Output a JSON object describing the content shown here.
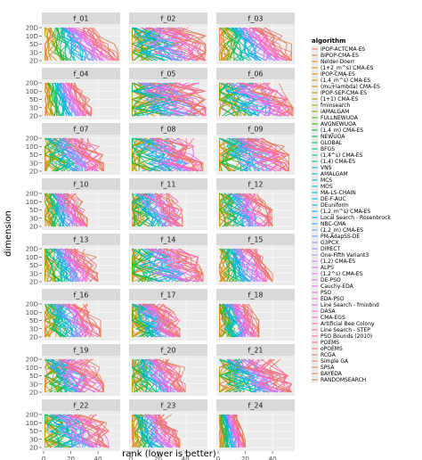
{
  "chart_data": {
    "type": "line",
    "title": "",
    "xlabel": "rank (lower is better)",
    "ylabel": "dimension",
    "x_ticks": [
      0,
      20,
      40
    ],
    "xlim": [
      0,
      55
    ],
    "y_ticks": [
      "2D",
      "3D",
      "5D",
      "10D",
      "20D"
    ],
    "panels": [
      {
        "name": "f_01",
        "max_rank": 55,
        "tangle": 0.2
      },
      {
        "name": "f_02",
        "max_rank": 55,
        "tangle": 0.6
      },
      {
        "name": "f_03",
        "max_rank": 54,
        "tangle": 0.25
      },
      {
        "name": "f_04",
        "max_rank": 35,
        "tangle": 0.15
      },
      {
        "name": "f_05",
        "max_rank": 55,
        "tangle": 0.75
      },
      {
        "name": "f_06",
        "max_rank": 55,
        "tangle": 0.5
      },
      {
        "name": "f_07",
        "max_rank": 44,
        "tangle": 0.45
      },
      {
        "name": "f_08",
        "max_rank": 53,
        "tangle": 0.55
      },
      {
        "name": "f_09",
        "max_rank": 52,
        "tangle": 0.5
      },
      {
        "name": "f_10",
        "max_rank": 32,
        "tangle": 0.35
      },
      {
        "name": "f_11",
        "max_rank": 38,
        "tangle": 0.5
      },
      {
        "name": "f_12",
        "max_rank": 40,
        "tangle": 0.4
      },
      {
        "name": "f_13",
        "max_rank": 40,
        "tangle": 0.35
      },
      {
        "name": "f_14",
        "max_rank": 53,
        "tangle": 0.6
      },
      {
        "name": "f_15",
        "max_rank": 40,
        "tangle": 0.3
      },
      {
        "name": "f_16",
        "max_rank": 42,
        "tangle": 0.35
      },
      {
        "name": "f_17",
        "max_rank": 36,
        "tangle": 0.5
      },
      {
        "name": "f_18",
        "max_rank": 30,
        "tangle": 0.4
      },
      {
        "name": "f_19",
        "max_rank": 44,
        "tangle": 0.55
      },
      {
        "name": "f_20",
        "max_rank": 40,
        "tangle": 0.4
      },
      {
        "name": "f_21",
        "max_rank": 54,
        "tangle": 0.5
      },
      {
        "name": "f_22",
        "max_rank": 48,
        "tangle": 0.5
      },
      {
        "name": "f_23",
        "max_rank": 36,
        "tangle": 0.35
      },
      {
        "name": "f_24",
        "max_rank": 20,
        "tangle": 0.25
      }
    ],
    "legend": {
      "title": "algorithm",
      "placement": "right",
      "entries": [
        "IPOP-ACTCMA-ES",
        "BIPOP-CMA-ES",
        "Nelder-Doerr",
        "(1+2_m^s) CMA-ES",
        "IPOP-CMA-ES",
        "(1,4_m^s) CMA-ES",
        "(mu+lambda) CMA-ES",
        "IPOP-SEP-CMA-ES",
        "(1+1) CMA-ES",
        "fminsearch",
        "iAMALGAM",
        "FULLNEWUOA",
        "AVGNEWUOA",
        "(1,4_m) CMA-ES",
        "NEWUOA",
        "GLOBAL",
        "BFGS",
        "(1,4^s) CMA-ES",
        "(1,4) CMA-ES",
        "VNS",
        "AMALGAM",
        "MCS",
        "MOS",
        "MA-LS-CHAIN",
        "DE-F-AUC",
        "DEuniform",
        "(1,2_m^s) CMA-ES",
        "Local Search - Rosenbrock",
        "NBC-CMA",
        "(1,2_m) CMA-ES",
        "PM-AdapSS-DE",
        "G3PCX",
        "DIRECT",
        "One-Fifth Variant3",
        "(1,2) CMA-ES",
        "ALPS",
        "(1,2^s) CMA-ES",
        "DE-PSO",
        "Cauchy-EDA",
        "PSO",
        "EDA-PSO",
        "Line Search - fminbnd",
        "DASA",
        "CMA-EGS",
        "Artificial Bee Colony",
        "Line Search - STEP",
        "PSO Bounds (2010)",
        "POEMS",
        "oPOEMS",
        "RCGA",
        "Simple GA",
        "SPSA",
        "BAYEDA",
        "RANDOMSEARCH"
      ],
      "colors": [
        "#F8766D",
        "#F47A3E",
        "#EE7F1A",
        "#E58700",
        "#DB8E00",
        "#CF9400",
        "#C29A00",
        "#B49F00",
        "#A3A500",
        "#90AA00",
        "#7AAE00",
        "#5EB300",
        "#32B600",
        "#00BA38",
        "#00BC52",
        "#00BE67",
        "#00C07A",
        "#00C18B",
        "#00C19A",
        "#00C1A9",
        "#00C0B7",
        "#00BFC4",
        "#00BDD0",
        "#00BADB",
        "#00B6E5",
        "#00B2EE",
        "#00ADF6",
        "#00A7FC",
        "#35A2FF",
        "#619CFF",
        "#7C96FF",
        "#9390F8",
        "#A58AF5",
        "#B583FF",
        "#C27CFF",
        "#CF78F7",
        "#DA72F3",
        "#E36EF6",
        "#EC69EF",
        "#F265E6",
        "#F763DA",
        "#FB61D7",
        "#FF61C9",
        "#FF62BC",
        "#FF64B0",
        "#FF67A4",
        "#FD6A98",
        "#FA6E8C",
        "#F67280",
        "#F27574",
        "#EE7868",
        "#E97B5E",
        "#E47E54",
        "#DF814A"
      ]
    }
  }
}
